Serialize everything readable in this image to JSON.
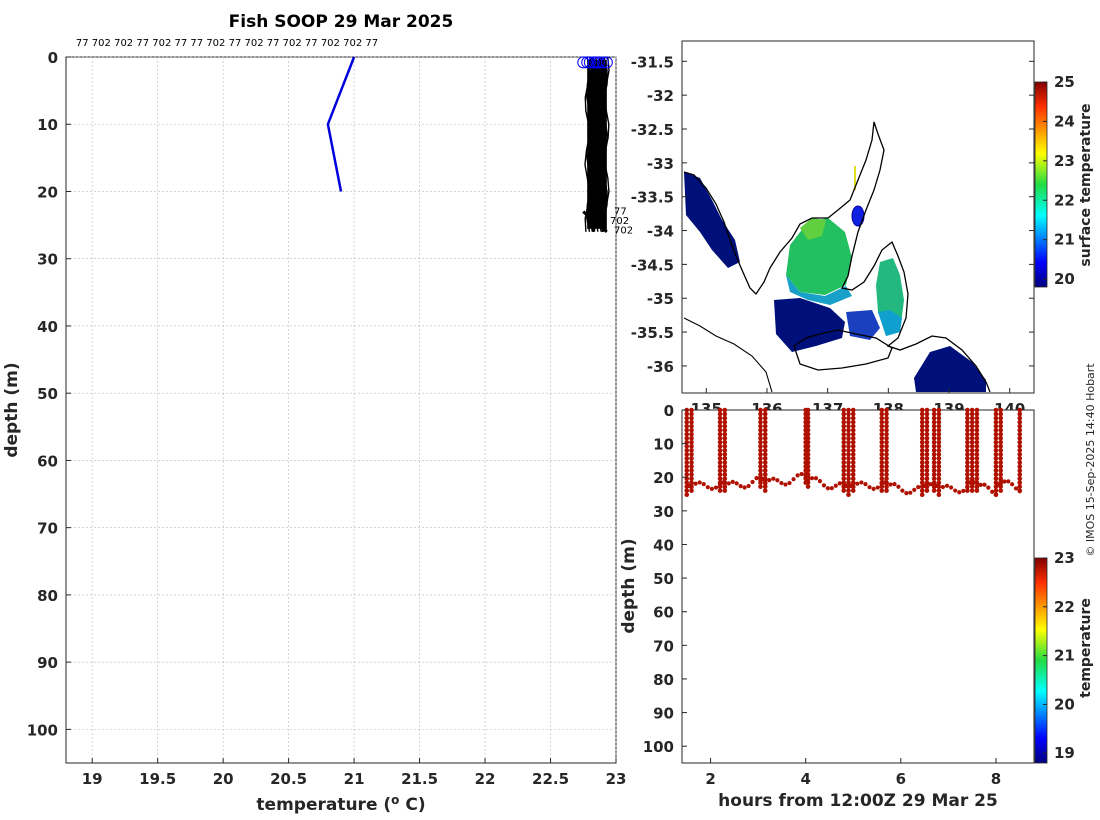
{
  "chart_data": [
    {
      "id": "profiles",
      "type": "line",
      "title": "Fish SOOP 29 Mar 2025",
      "xlabel": "temperature (",
      "xlabel_sup": "o",
      "xlabel_unit": " C)",
      "ylabel": "depth (m)",
      "xlim": [
        18.8,
        23
      ],
      "ylim": [
        105,
        0
      ],
      "y_reversed": true,
      "grid": true,
      "xticks": [
        "19",
        "19.5",
        "20",
        "20.5",
        "21",
        "21.5",
        "22",
        "22.5",
        "23"
      ],
      "xtick_values": [
        19,
        19.5,
        20,
        20.5,
        21,
        21.5,
        22,
        22.5,
        23
      ],
      "yticks": [
        "0",
        "10",
        "20",
        "30",
        "40",
        "50",
        "60",
        "70",
        "80",
        "90",
        "100"
      ],
      "ytick_values": [
        0,
        10,
        20,
        30,
        40,
        50,
        60,
        70,
        80,
        90,
        100
      ],
      "top_labels": "77 702 702 77 702 77 77 702 77 702 77 702 77 702 702 77",
      "end_labels": [
        "77",
        "702",
        "702"
      ],
      "series": [
        {
          "color": "#0000dd",
          "points": [
            [
              21.0,
              0
            ],
            [
              20.9,
              5
            ],
            [
              20.8,
              10
            ],
            [
              20.9,
              20
            ]
          ]
        }
      ],
      "profile_band": {
        "color": "#000000",
        "tmin": 22.78,
        "tmax": 22.93,
        "depth_min": 0,
        "depth_max": 26
      },
      "surface_markers": {
        "color": "#0000ff",
        "depth": 0.8,
        "temps": [
          22.75,
          22.78,
          22.8,
          22.83,
          22.85,
          22.87,
          22.9,
          22.93
        ]
      }
    },
    {
      "id": "map",
      "type": "heatmap",
      "xticks": [
        "135",
        "136",
        "137",
        "138",
        "139",
        "140"
      ],
      "xtick_values": [
        135,
        136,
        137,
        138,
        139,
        140
      ],
      "yticks": [
        "-31.5",
        "-32",
        "-32.5",
        "-33",
        "-33.5",
        "-34",
        "-34.5",
        "-35",
        "-35.5",
        "-36"
      ],
      "ytick_values": [
        -31.5,
        -32,
        -32.5,
        -33,
        -33.5,
        -34,
        -34.5,
        -35,
        -35.5,
        -36
      ],
      "xlim": [
        134.6,
        140.4
      ],
      "ylim": [
        -36.4,
        -31.2
      ],
      "colorbar": {
        "label": "surface temperature",
        "min": 19.8,
        "max": 25,
        "ticks": [
          "20",
          "21",
          "22",
          "23",
          "24",
          "25"
        ],
        "tick_values": [
          20,
          21,
          22,
          23,
          24,
          25
        ]
      },
      "track": [
        [
          137.6,
          -33.7
        ],
        [
          137.55,
          -33.8
        ],
        [
          137.5,
          -33.9
        ]
      ]
    },
    {
      "id": "section",
      "type": "scatter",
      "xlabel": "hours from 12:00Z 29 Mar 25",
      "ylabel": "depth (m)",
      "xlim": [
        1.4,
        8.8
      ],
      "ylim": [
        105,
        0
      ],
      "xticks": [
        "2",
        "4",
        "6",
        "8"
      ],
      "xtick_values": [
        2,
        4,
        6,
        8
      ],
      "yticks": [
        "0",
        "10",
        "20",
        "30",
        "40",
        "50",
        "60",
        "70",
        "80",
        "90",
        "100"
      ],
      "ytick_values": [
        0,
        10,
        20,
        30,
        40,
        50,
        60,
        70,
        80,
        90,
        100
      ],
      "colorbar": {
        "label": "temperature",
        "min": 18.8,
        "max": 23,
        "ticks": [
          "19",
          "20",
          "21",
          "22",
          "23"
        ],
        "tick_values": [
          19,
          20,
          21,
          22,
          23
        ]
      },
      "point_color": "#b01000",
      "profile_times": [
        1.5,
        1.6,
        2.2,
        2.3,
        3.05,
        3.15,
        4.0,
        4.05,
        4.8,
        4.9,
        5.0,
        5.6,
        5.7,
        6.45,
        6.55,
        6.7,
        6.8,
        7.4,
        7.5,
        7.6,
        8.0,
        8.1,
        8.5
      ],
      "bottom_depths": [
        26,
        25,
        24,
        25,
        23,
        24,
        22,
        23,
        25,
        26,
        25,
        24,
        25,
        26,
        25,
        25,
        26,
        25,
        24,
        25,
        26,
        24,
        25
      ]
    }
  ],
  "credit": "© IMOS 15-Sep-2025 14:40 Hobart"
}
